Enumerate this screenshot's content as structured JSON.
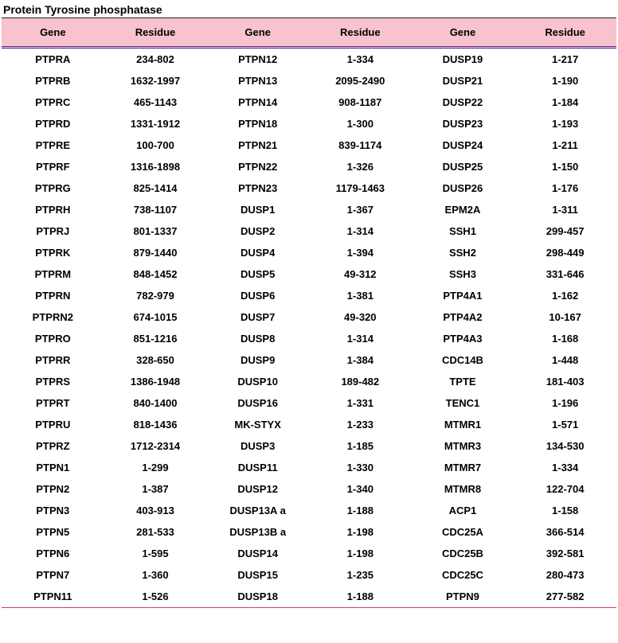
{
  "title": "Protein Tyrosine phosphatase",
  "header_color": "#f8c2ce",
  "border_top_color": "#222222",
  "border_bottom_color": "#c4455e",
  "sep_color": "#4a2c90",
  "font_cell_size_pt": 10,
  "font_header_size_pt": 10,
  "columns": [
    "Gene",
    "Residue",
    "Gene",
    "Residue",
    "Gene",
    "Residue"
  ],
  "rows": [
    [
      "PTPRA",
      "234-802",
      "PTPN12",
      "1-334",
      "DUSP19",
      "1-217"
    ],
    [
      "PTPRB",
      "1632-1997",
      "PTPN13",
      "2095-2490",
      "DUSP21",
      "1-190"
    ],
    [
      "PTPRC",
      "465-1143",
      "PTPN14",
      "908-1187",
      "DUSP22",
      "1-184"
    ],
    [
      "PTPRD",
      "1331-1912",
      "PTPN18",
      "1-300",
      "DUSP23",
      "1-193"
    ],
    [
      "PTPRE",
      "100-700",
      "PTPN21",
      "839-1174",
      "DUSP24",
      "1-211"
    ],
    [
      "PTPRF",
      "1316-1898",
      "PTPN22",
      "1-326",
      "DUSP25",
      "1-150"
    ],
    [
      "PTPRG",
      "825-1414",
      "PTPN23",
      "1179-1463",
      "DUSP26",
      "1-176"
    ],
    [
      "PTPRH",
      "738-1107",
      "DUSP1",
      "1-367",
      "EPM2A",
      "1-311"
    ],
    [
      "PTPRJ",
      "801-1337",
      "DUSP2",
      "1-314",
      "SSH1",
      "299-457"
    ],
    [
      "PTPRK",
      "879-1440",
      "DUSP4",
      "1-394",
      "SSH2",
      "298-449"
    ],
    [
      "PTPRM",
      "848-1452",
      "DUSP5",
      "49-312",
      "SSH3",
      "331-646"
    ],
    [
      "PTPRN",
      "782-979",
      "DUSP6",
      "1-381",
      "PTP4A1",
      "1-162"
    ],
    [
      "PTPRN2",
      "674-1015",
      "DUSP7",
      "49-320",
      "PTP4A2",
      "10-167"
    ],
    [
      "PTPRO",
      "851-1216",
      "DUSP8",
      "1-314",
      "PTP4A3",
      "1-168"
    ],
    [
      "PTPRR",
      "328-650",
      "DUSP9",
      "1-384",
      "CDC14B",
      "1-448"
    ],
    [
      "PTPRS",
      "1386-1948",
      "DUSP10",
      "189-482",
      "TPTE",
      "181-403"
    ],
    [
      "PTPRT",
      "840-1400",
      "DUSP16",
      "1-331",
      "TENC1",
      "1-196"
    ],
    [
      "PTPRU",
      "818-1436",
      "MK-STYX",
      "1-233",
      "MTMR1",
      "1-571"
    ],
    [
      "PTPRZ",
      "1712-2314",
      "DUSP3",
      "1-185",
      "MTMR3",
      "134-530"
    ],
    [
      "PTPN1",
      "1-299",
      "DUSP11",
      "1-330",
      "MTMR7",
      "1-334"
    ],
    [
      "PTPN2",
      "1-387",
      "DUSP12",
      "1-340",
      "MTMR8",
      "122-704"
    ],
    [
      "PTPN3",
      "403-913",
      "DUSP13A a",
      "1-188",
      "ACP1",
      "1-158"
    ],
    [
      "PTPN5",
      "281-533",
      "DUSP13B a",
      "1-198",
      "CDC25A",
      "366-514"
    ],
    [
      "PTPN6",
      "1-595",
      "DUSP14",
      "1-198",
      "CDC25B",
      "392-581"
    ],
    [
      "PTPN7",
      "1-360",
      "DUSP15",
      "1-235",
      "CDC25C",
      "280-473"
    ],
    [
      "PTPN11",
      "1-526",
      "DUSP18",
      "1-188",
      "PTPN9",
      "277-582"
    ]
  ]
}
